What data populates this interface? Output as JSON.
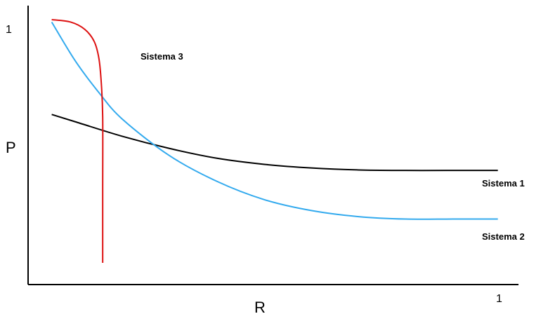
{
  "chart_data": {
    "type": "line",
    "xlabel": "R",
    "ylabel": "P",
    "xlim": [
      0,
      1
    ],
    "ylim": [
      0,
      1
    ],
    "x_tick_label": "1",
    "y_tick_label": "1",
    "grid": false,
    "legend": "inline labels",
    "series": [
      {
        "name": "Sistema 1",
        "color": "#000000",
        "points": [
          [
            0.05,
            0.61
          ],
          [
            0.1,
            0.58
          ],
          [
            0.2,
            0.52
          ],
          [
            0.3,
            0.47
          ],
          [
            0.4,
            0.43
          ],
          [
            0.5,
            0.405
          ],
          [
            0.6,
            0.39
          ],
          [
            0.7,
            0.382
          ],
          [
            0.8,
            0.38
          ],
          [
            0.9,
            0.38
          ],
          [
            0.995,
            0.38
          ]
        ]
      },
      {
        "name": "Sistema 2",
        "color": "#33aaee",
        "points": [
          [
            0.05,
            0.99
          ],
          [
            0.1,
            0.83
          ],
          [
            0.15,
            0.7
          ],
          [
            0.2,
            0.59
          ],
          [
            0.3,
            0.44
          ],
          [
            0.4,
            0.335
          ],
          [
            0.5,
            0.26
          ],
          [
            0.6,
            0.215
          ],
          [
            0.7,
            0.19
          ],
          [
            0.8,
            0.18
          ],
          [
            0.9,
            0.18
          ],
          [
            0.995,
            0.18
          ]
        ]
      },
      {
        "name": "Sistema 3",
        "color": "#dd1111",
        "points": [
          [
            0.05,
            1.0
          ],
          [
            0.09,
            0.99
          ],
          [
            0.12,
            0.96
          ],
          [
            0.14,
            0.91
          ],
          [
            0.15,
            0.84
          ],
          [
            0.155,
            0.74
          ],
          [
            0.158,
            0.6
          ],
          [
            0.158,
            0.3
          ],
          [
            0.158,
            0.0
          ]
        ]
      }
    ]
  }
}
